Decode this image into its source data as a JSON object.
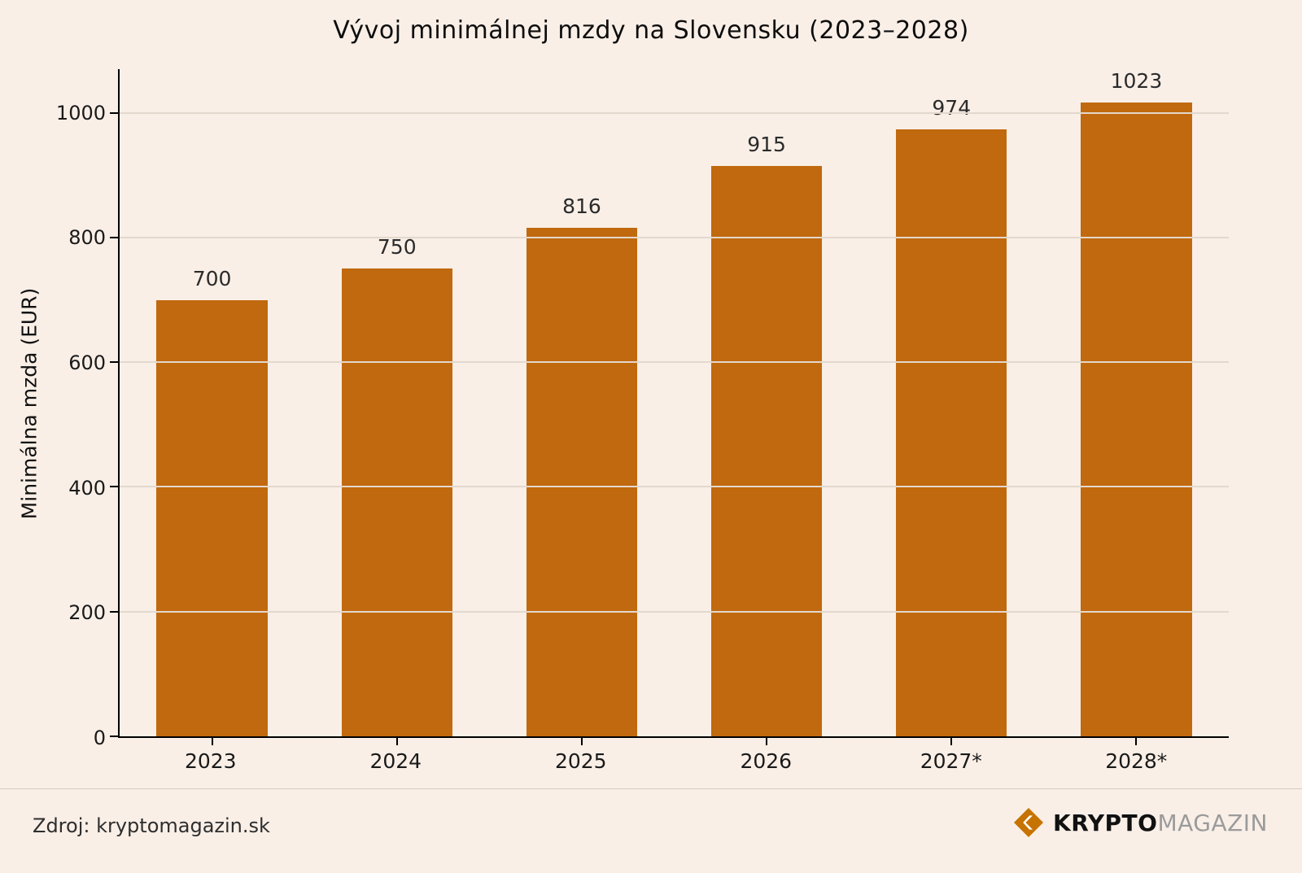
{
  "title": "Vývoj minimálnej mzdy na Slovensku (2023–2028)",
  "chart_data": {
    "type": "bar",
    "categories": [
      "2023",
      "2024",
      "2025",
      "2026",
      "2027*",
      "2028*"
    ],
    "values": [
      700,
      750,
      816,
      915,
      974,
      1023
    ],
    "title": "Vývoj minimálnej mzdy na Slovensku (2023–2028)",
    "xlabel": "",
    "ylabel": "Minimálna mzda (EUR)",
    "yticks": [
      0,
      200,
      400,
      600,
      800,
      1000
    ],
    "ylim": [
      0,
      1070
    ],
    "grid": true,
    "legend": "none",
    "bar_color": "#C1690E",
    "background_color": "#F9EFE7"
  },
  "footer": {
    "source": "Zdroj: kryptomagazin.sk",
    "brand_bold": "KRYPTO",
    "brand_light": "MAGAZIN",
    "icon": "krypto-diamond-icon",
    "icon_color": "#C77300"
  }
}
